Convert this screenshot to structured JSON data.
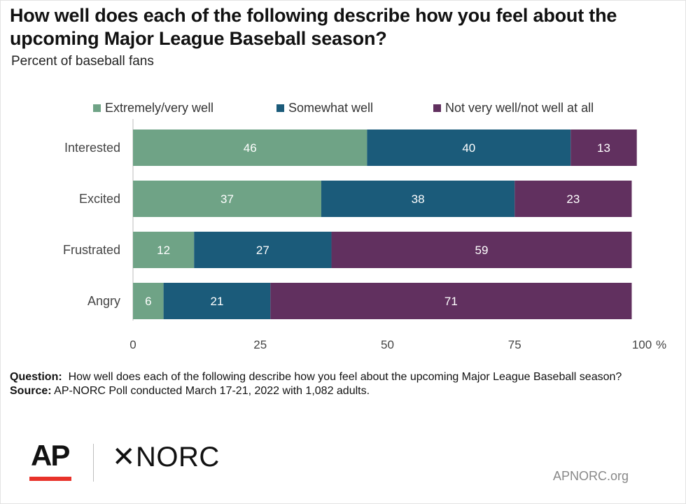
{
  "title": "How well does each of the following describe how you feel about the upcoming Major League Baseball season?",
  "subtitle": "Percent of baseball fans",
  "legend": [
    {
      "label": "Extremely/very well",
      "color": "#6fa386"
    },
    {
      "label": "Somewhat well",
      "color": "#1b5b7a"
    },
    {
      "label": "Not very well/not well at all",
      "color": "#61305f"
    }
  ],
  "chart_data": {
    "type": "bar",
    "orientation": "horizontal",
    "stacked": true,
    "categories": [
      "Interested",
      "Excited",
      "Frustrated",
      "Angry"
    ],
    "series": [
      {
        "name": "Extremely/very well",
        "values": [
          46,
          37,
          12,
          6
        ],
        "color": "#6fa386"
      },
      {
        "name": "Somewhat well",
        "values": [
          40,
          38,
          27,
          21
        ],
        "color": "#1b5b7a"
      },
      {
        "name": "Not very well/not well at all",
        "values": [
          13,
          23,
          59,
          71
        ],
        "color": "#61305f"
      }
    ],
    "xlim": [
      0,
      100
    ],
    "xticks": [
      "0",
      "25",
      "50",
      "75",
      "100"
    ],
    "x_unit": "%",
    "legend_position": "top"
  },
  "notes": {
    "question_label": "Question:",
    "question_text": "How well does each of the following describe how you feel about the upcoming Major League Baseball season?",
    "source_label": "Source:",
    "source_text": "AP-NORC Poll conducted March 17-21, 2022 with 1,082 adults."
  },
  "branding": {
    "ap_logo": "AP",
    "norc_logo": "✕NORC",
    "site": "APNORC.org",
    "ap_accent": "#e8322a"
  }
}
